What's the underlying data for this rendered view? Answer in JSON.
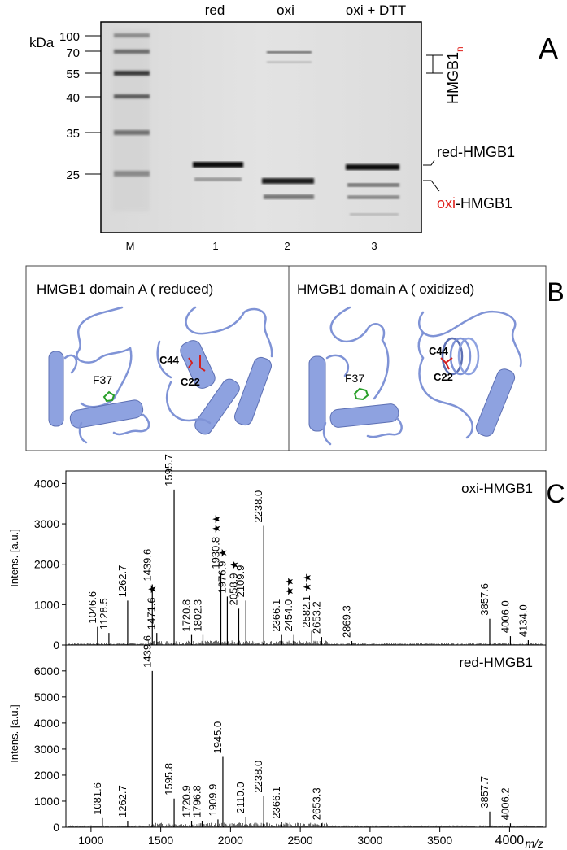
{
  "panel_a": {
    "letter": "A",
    "kda_label": "kDa",
    "lane_headers": [
      "red",
      "oxi",
      "oxi + DTT"
    ],
    "lane_numbers": [
      "M",
      "1",
      "2",
      "3"
    ],
    "marker_kda": [
      "100",
      "70",
      "55",
      "40",
      "35",
      "25"
    ],
    "marker_values": [
      100,
      70,
      55,
      40,
      35,
      25
    ],
    "band_labels": {
      "multimer_base": "HMGB1",
      "multimer_sub": "n",
      "reduced": "red-HMGB1",
      "oxidized_prefix": "oxi",
      "oxidized_suffix": "-HMGB1"
    }
  },
  "panel_b": {
    "letter": "B",
    "left_title": "HMGB1 domain A  ( reduced)",
    "right_title": "HMGB1 domain A  ( oxidized)",
    "residue_f37": "F37",
    "residue_c44": "C44",
    "residue_c22": "C22"
  },
  "panel_c": {
    "letter": "C",
    "xlabel": "m/z",
    "x_ticks": [
      1000,
      1500,
      2000,
      2500,
      3000,
      3500,
      4000
    ],
    "xlim": [
      820,
      4260
    ],
    "top": {
      "name": "oxi-HMGB1",
      "ylabel": "Intens. [a.u.]",
      "y_ticks": [
        0,
        1000,
        2000,
        3000,
        4000
      ],
      "ylim": [
        0,
        4250
      ],
      "peaks": [
        {
          "mz": 1046.6,
          "h": 450,
          "label": "1046.6"
        },
        {
          "mz": 1128.5,
          "h": 300,
          "label": "1128.5"
        },
        {
          "mz": 1262.7,
          "h": 1100,
          "label": "1262.7"
        },
        {
          "mz": 1439.6,
          "h": 1500,
          "label": "1439.6"
        },
        {
          "mz": 1471.6,
          "h": 300,
          "label": "1471.6",
          "stars": "★"
        },
        {
          "mz": 1595.7,
          "h": 3850,
          "label": "1595.7"
        },
        {
          "mz": 1720.8,
          "h": 250,
          "label": "1720.8"
        },
        {
          "mz": 1802.3,
          "h": 250,
          "label": "1802.3"
        },
        {
          "mz": 1930.8,
          "h": 1800,
          "label": "1930.8",
          "stars": "★★"
        },
        {
          "mz": 1976.9,
          "h": 1200,
          "label": "1976.9",
          "stars": "★"
        },
        {
          "mz": 2058.9,
          "h": 900,
          "label": "2058.9",
          "stars": "★"
        },
        {
          "mz": 2109.9,
          "h": 1100,
          "label": "2109.9"
        },
        {
          "mz": 2238.0,
          "h": 2950,
          "label": "2238.0"
        },
        {
          "mz": 2366.1,
          "h": 250,
          "label": "2366.1"
        },
        {
          "mz": 2454.0,
          "h": 250,
          "label": "2454.0",
          "stars": "★★"
        },
        {
          "mz": 2582.1,
          "h": 350,
          "label": "2582.1",
          "stars": "★★"
        },
        {
          "mz": 2653.2,
          "h": 200,
          "label": "2653.2"
        },
        {
          "mz": 2869.3,
          "h": 100,
          "label": "2869.3"
        },
        {
          "mz": 3857.6,
          "h": 650,
          "label": "3857.6"
        },
        {
          "mz": 4006.0,
          "h": 220,
          "label": "4006.0"
        },
        {
          "mz": 4134.0,
          "h": 120,
          "label": "4134.0"
        }
      ]
    },
    "bottom": {
      "name": "red-HMGB1",
      "ylabel": "Intens. [a.u.]",
      "y_ticks": [
        0,
        1000,
        2000,
        3000,
        4000,
        5000,
        6000
      ],
      "ylim": [
        0,
        6900
      ],
      "peaks": [
        {
          "mz": 1081.6,
          "h": 350,
          "label": "1081.6"
        },
        {
          "mz": 1262.7,
          "h": 250,
          "label": "1262.7"
        },
        {
          "mz": 1439.6,
          "h": 6000,
          "label": "1439.6"
        },
        {
          "mz": 1595.8,
          "h": 1100,
          "label": "1595.8"
        },
        {
          "mz": 1720.9,
          "h": 250,
          "label": "1720.9"
        },
        {
          "mz": 1796.8,
          "h": 250,
          "label": "1796.8"
        },
        {
          "mz": 1909.9,
          "h": 300,
          "label": "1909.9"
        },
        {
          "mz": 1945.0,
          "h": 2700,
          "label": "1945.0"
        },
        {
          "mz": 2110.0,
          "h": 400,
          "label": "2110.0"
        },
        {
          "mz": 2238.0,
          "h": 1200,
          "label": "2238.0"
        },
        {
          "mz": 2366.1,
          "h": 200,
          "label": "2366.1"
        },
        {
          "mz": 2653.3,
          "h": 150,
          "label": "2653.3"
        },
        {
          "mz": 3857.7,
          "h": 600,
          "label": "3857.7"
        },
        {
          "mz": 4006.2,
          "h": 150,
          "label": "4006.2"
        }
      ]
    }
  }
}
